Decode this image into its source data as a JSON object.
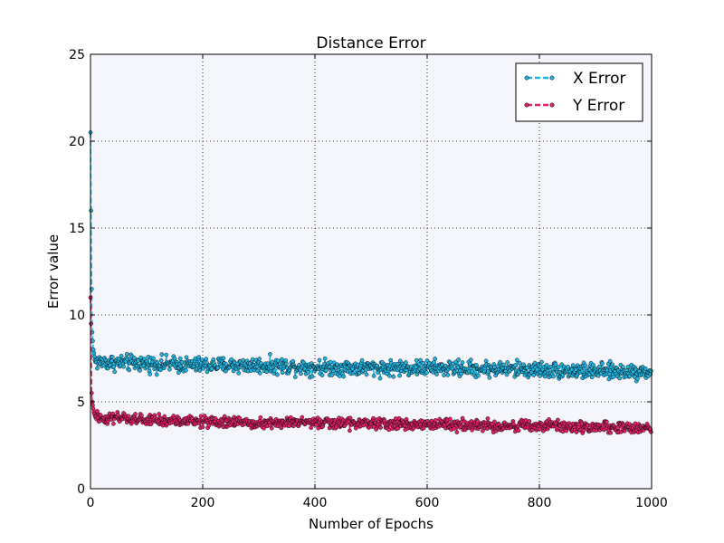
{
  "chart_data": {
    "type": "line",
    "title": "Distance Error",
    "xlabel": "Number of Epochs",
    "ylabel": "Error value",
    "xlim": [
      0,
      1000
    ],
    "ylim": [
      0,
      25
    ],
    "xticks": [
      0,
      200,
      400,
      600,
      800,
      1000
    ],
    "yticks": [
      0,
      5,
      10,
      15,
      20,
      25
    ],
    "x_tick_labels": [
      "0",
      "200",
      "400",
      "600",
      "800",
      "1000"
    ],
    "y_tick_labels": [
      "0",
      "5",
      "10",
      "15",
      "20",
      "25"
    ],
    "grid": true,
    "plot_background": "#f4f6fc",
    "legend_position": "top-right",
    "series": [
      {
        "name": "X Error",
        "color": "#21b4e0",
        "line_style": "dashed",
        "marker": "circle",
        "start_values": [
          [
            0,
            20.5
          ],
          [
            1,
            16.0
          ],
          [
            2,
            11.5
          ],
          [
            3,
            9.0
          ],
          [
            4,
            8.5
          ],
          [
            5,
            8.0
          ],
          [
            6,
            7.8
          ],
          [
            7,
            7.6
          ],
          [
            8,
            7.4
          ],
          [
            9,
            7.3
          ]
        ],
        "trend": [
          [
            10,
            7.3
          ],
          [
            100,
            7.2
          ],
          [
            200,
            7.1
          ],
          [
            300,
            7.1
          ],
          [
            400,
            7.0
          ],
          [
            500,
            6.95
          ],
          [
            600,
            6.95
          ],
          [
            700,
            6.9
          ],
          [
            800,
            6.85
          ],
          [
            900,
            6.75
          ],
          [
            1000,
            6.75
          ]
        ],
        "noise_amplitude": 0.35,
        "point_count": 1000
      },
      {
        "name": "Y Error",
        "color": "#e0226a",
        "line_style": "dashed",
        "marker": "circle",
        "start_values": [
          [
            0,
            11.0
          ],
          [
            1,
            9.5
          ],
          [
            2,
            5.5
          ],
          [
            3,
            5.0
          ],
          [
            4,
            4.8
          ],
          [
            5,
            4.6
          ],
          [
            6,
            4.4
          ],
          [
            7,
            4.3
          ],
          [
            8,
            4.2
          ],
          [
            9,
            4.1
          ]
        ],
        "trend": [
          [
            10,
            4.1
          ],
          [
            100,
            3.95
          ],
          [
            200,
            3.85
          ],
          [
            300,
            3.8
          ],
          [
            400,
            3.8
          ],
          [
            500,
            3.75
          ],
          [
            600,
            3.7
          ],
          [
            700,
            3.65
          ],
          [
            800,
            3.6
          ],
          [
            900,
            3.55
          ],
          [
            1000,
            3.5
          ]
        ],
        "noise_amplitude": 0.25,
        "point_count": 1000
      }
    ]
  }
}
